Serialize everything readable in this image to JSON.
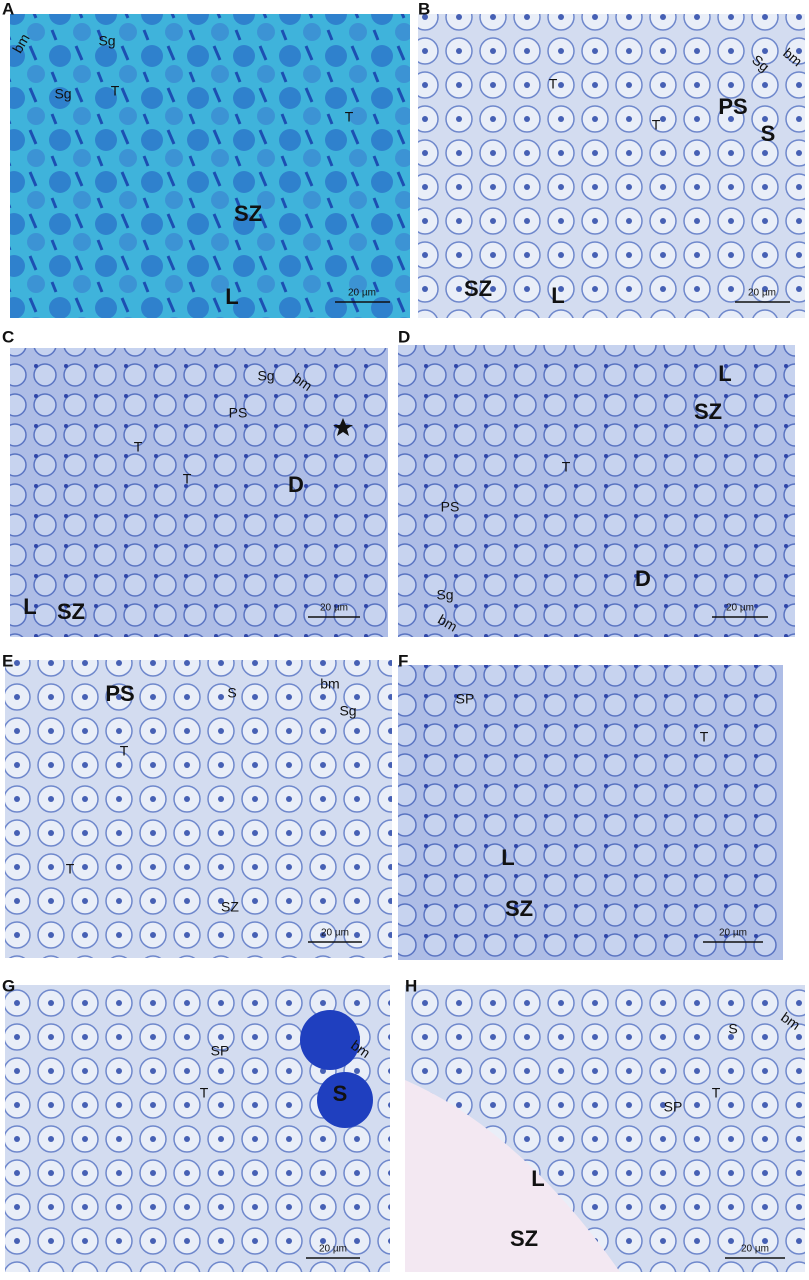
{
  "panels": [
    {
      "letter": "A",
      "labels": [
        "bm",
        "Sg",
        "Sg",
        "T",
        "T",
        "SZ",
        "L"
      ],
      "scale_bar": "20 µm"
    },
    {
      "letter": "B",
      "labels": [
        "T",
        "T",
        "PS",
        "S",
        "Sg",
        "bm",
        "SZ",
        "L"
      ],
      "scale_bar": "20 µm"
    },
    {
      "letter": "C",
      "labels": [
        "Sg",
        "bm",
        "PS",
        "T",
        "T",
        "D",
        "L",
        "SZ"
      ],
      "scale_bar": "20 µm"
    },
    {
      "letter": "D",
      "labels": [
        "L",
        "SZ",
        "T",
        "PS",
        "D",
        "Sg",
        "bm"
      ],
      "scale_bar": "20 µm"
    },
    {
      "letter": "E",
      "labels": [
        "PS",
        "S",
        "bm",
        "Sg",
        "T",
        "T",
        "SZ"
      ],
      "scale_bar": "20 µm"
    },
    {
      "letter": "F",
      "labels": [
        "SP",
        "T",
        "L",
        "SZ"
      ],
      "scale_bar": "20 µm"
    },
    {
      "letter": "G",
      "labels": [
        "bm",
        "SP",
        "S",
        "T"
      ],
      "scale_bar": "20 µm"
    },
    {
      "letter": "H",
      "labels": [
        "bm",
        "S",
        "T",
        "SP",
        "L",
        "SZ"
      ],
      "scale_bar": "20 µm"
    }
  ]
}
